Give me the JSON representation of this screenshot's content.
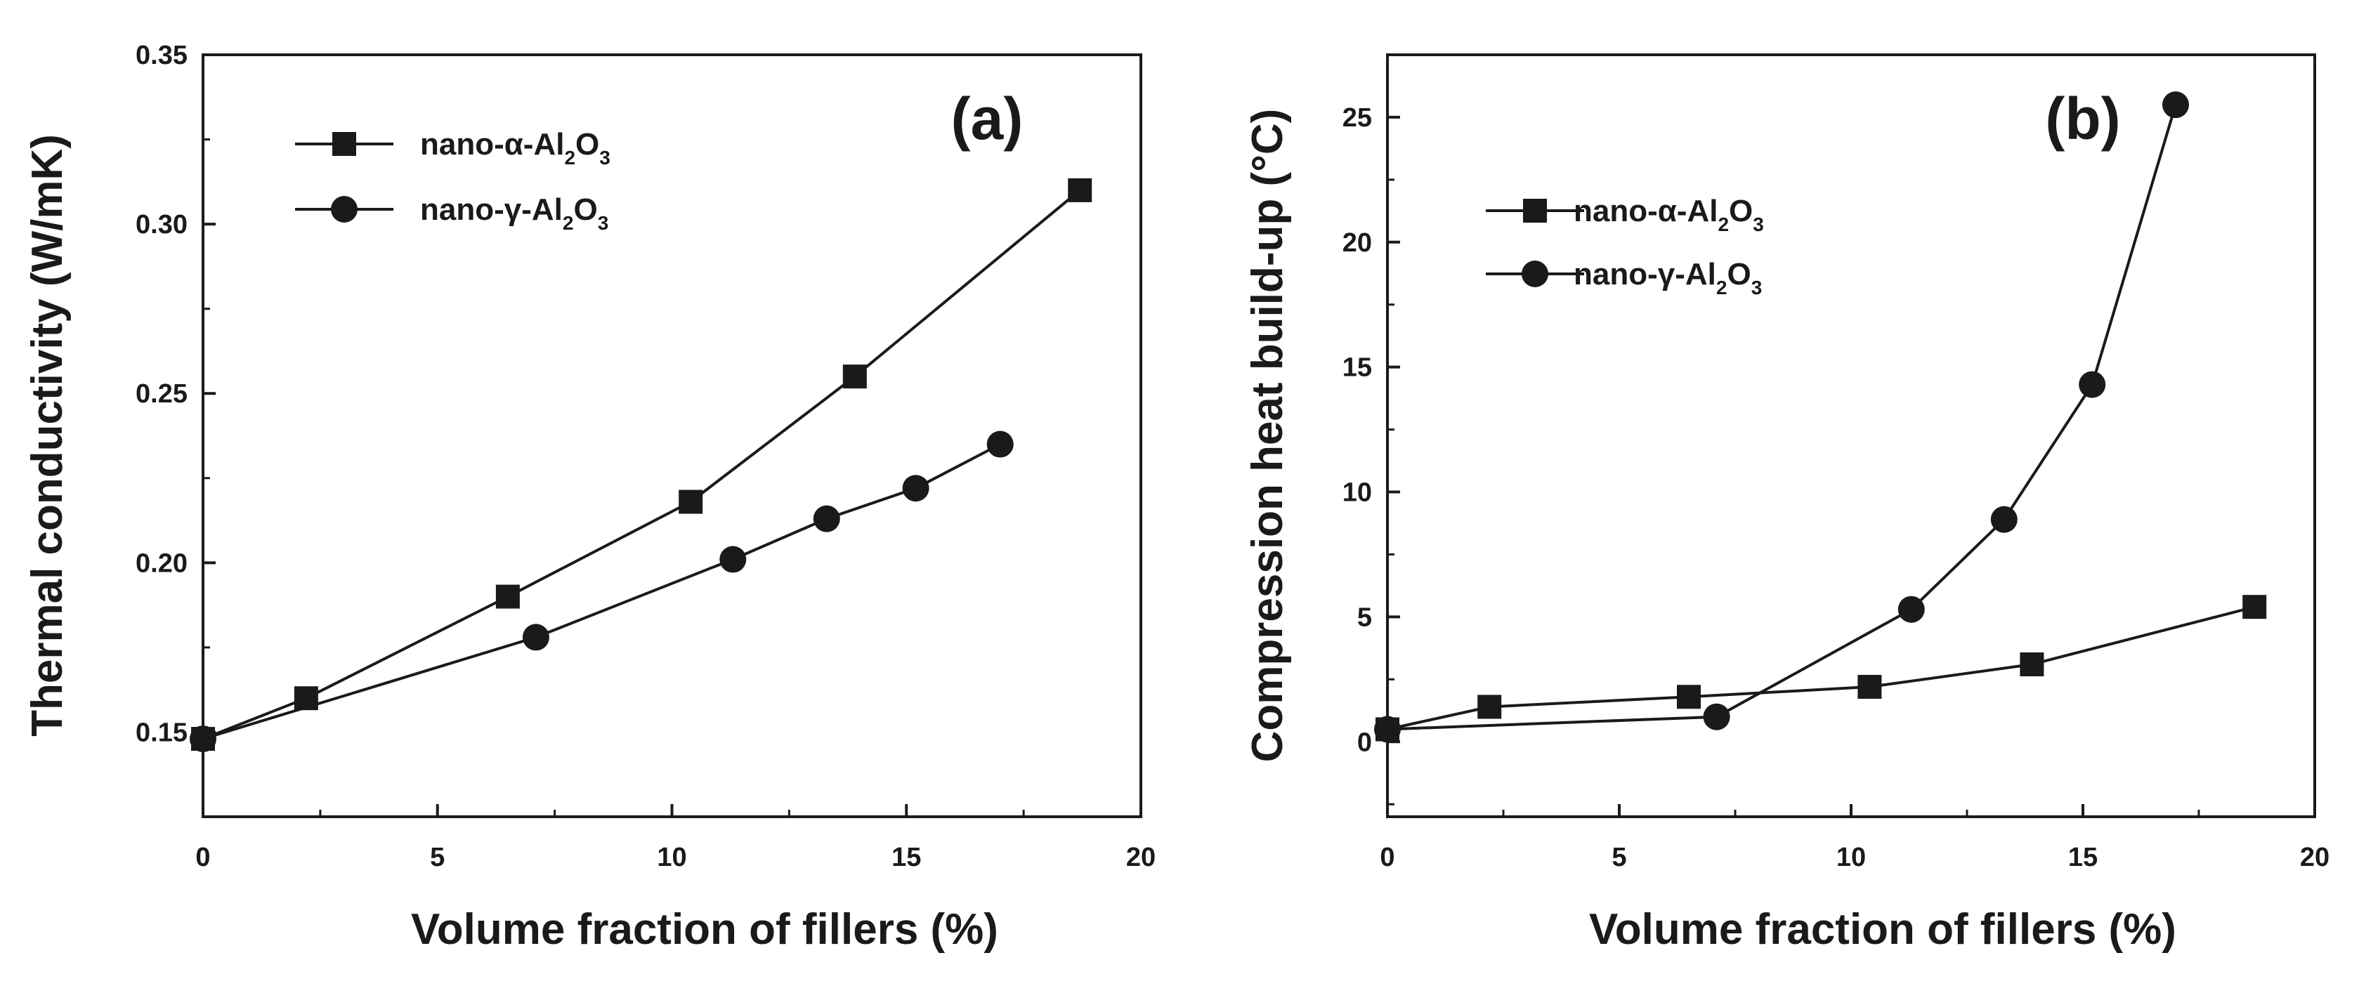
{
  "chart_data": [
    {
      "type": "line",
      "panel": "(a)",
      "xlabel": "Volume fraction of fillers (%)",
      "ylabel": "Thermal conductivity (W/mK)",
      "xlim": [
        0,
        20
      ],
      "ylim": [
        0.125,
        0.35
      ],
      "xticks": [
        0,
        5,
        10,
        15,
        20
      ],
      "yticks": [
        0.15,
        0.2,
        0.25,
        0.3,
        0.35
      ],
      "ytick_labels": [
        "0.15",
        "0.20",
        "0.25",
        "0.30",
        "0.35"
      ],
      "legend_position": "top-left",
      "series": [
        {
          "name": "nano-α-Al2O3",
          "label_parts": [
            "nano-α-Al",
            "2",
            "O",
            "3"
          ],
          "marker": "square",
          "x": [
            0,
            2.2,
            6.5,
            10.4,
            13.9,
            18.7
          ],
          "y": [
            0.148,
            0.16,
            0.19,
            0.218,
            0.255,
            0.31
          ]
        },
        {
          "name": "nano-γ-Al2O3",
          "label_parts": [
            "nano-γ-Al",
            "2",
            "O",
            "3"
          ],
          "marker": "circle",
          "x": [
            0,
            7.1,
            11.3,
            13.3,
            15.2,
            17.0
          ],
          "y": [
            0.148,
            0.178,
            0.201,
            0.213,
            0.222,
            0.235
          ]
        }
      ]
    },
    {
      "type": "line",
      "panel": "(b)",
      "xlabel": "Volume fraction of fillers (%)",
      "ylabel": "Compression heat build-up (°C)",
      "xlim": [
        0,
        20
      ],
      "ylim": [
        -3,
        27.5
      ],
      "xticks": [
        0,
        5,
        10,
        15,
        20
      ],
      "yticks": [
        0,
        5,
        10,
        15,
        20,
        25
      ],
      "ytick_labels": [
        "0",
        "5",
        "10",
        "15",
        "20",
        "25"
      ],
      "legend_position": "top-left",
      "series": [
        {
          "name": "nano-α-Al2O3",
          "label_parts": [
            "nano-α-Al",
            "2",
            "O",
            "3"
          ],
          "marker": "square",
          "x": [
            0,
            2.2,
            6.5,
            10.4,
            13.9,
            18.7
          ],
          "y": [
            0.5,
            1.4,
            1.8,
            2.2,
            3.1,
            5.4
          ]
        },
        {
          "name": "nano-γ-Al2O3",
          "label_parts": [
            "nano-γ-Al",
            "2",
            "O",
            "3"
          ],
          "marker": "circle",
          "x": [
            0,
            7.1,
            11.3,
            13.3,
            15.2,
            17.0
          ],
          "y": [
            0.5,
            1.0,
            5.3,
            8.9,
            14.3,
            25.5
          ]
        }
      ]
    }
  ]
}
